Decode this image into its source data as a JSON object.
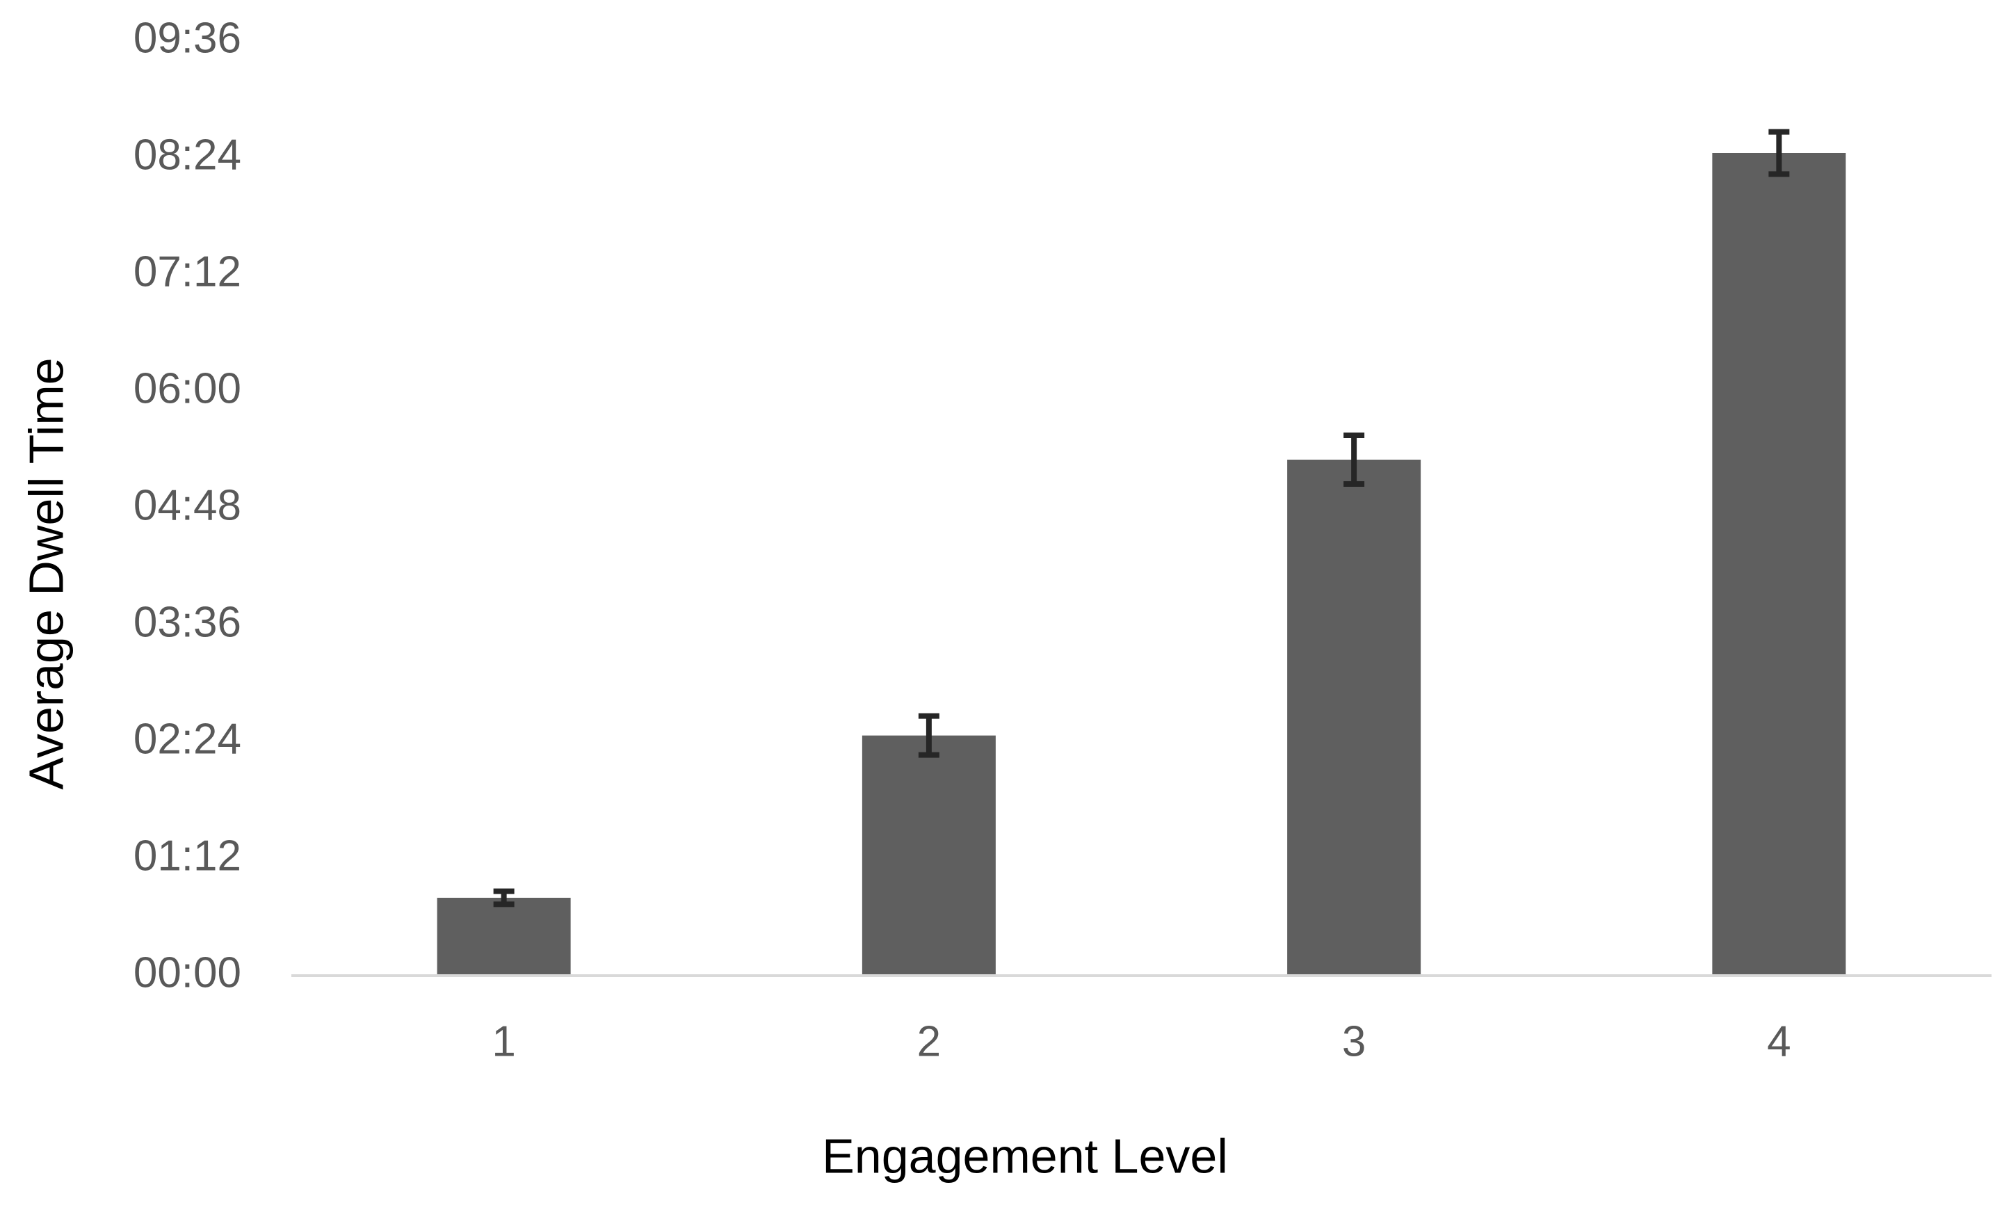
{
  "chart_data": {
    "type": "bar",
    "x_label": "Engagement Level",
    "y_label": "Average Dwell Time",
    "categories": [
      "1",
      "2",
      "3",
      "4"
    ],
    "values": [
      48,
      148,
      318,
      507
    ],
    "errors": [
      4,
      12,
      15,
      13
    ],
    "color": "#5f5f5f",
    "error_color": "#262626",
    "ylim": [
      0,
      576
    ],
    "yticks": [
      {
        "value": 0,
        "label": "00:00"
      },
      {
        "value": 72,
        "label": "01:12"
      },
      {
        "value": 144,
        "label": "02:24"
      },
      {
        "value": 216,
        "label": "03:36"
      },
      {
        "value": 288,
        "label": "04:48"
      },
      {
        "value": 360,
        "label": "06:00"
      },
      {
        "value": 432,
        "label": "07:12"
      },
      {
        "value": 504,
        "label": "08:24"
      },
      {
        "value": 576,
        "label": "09:36"
      }
    ],
    "grid": false
  }
}
